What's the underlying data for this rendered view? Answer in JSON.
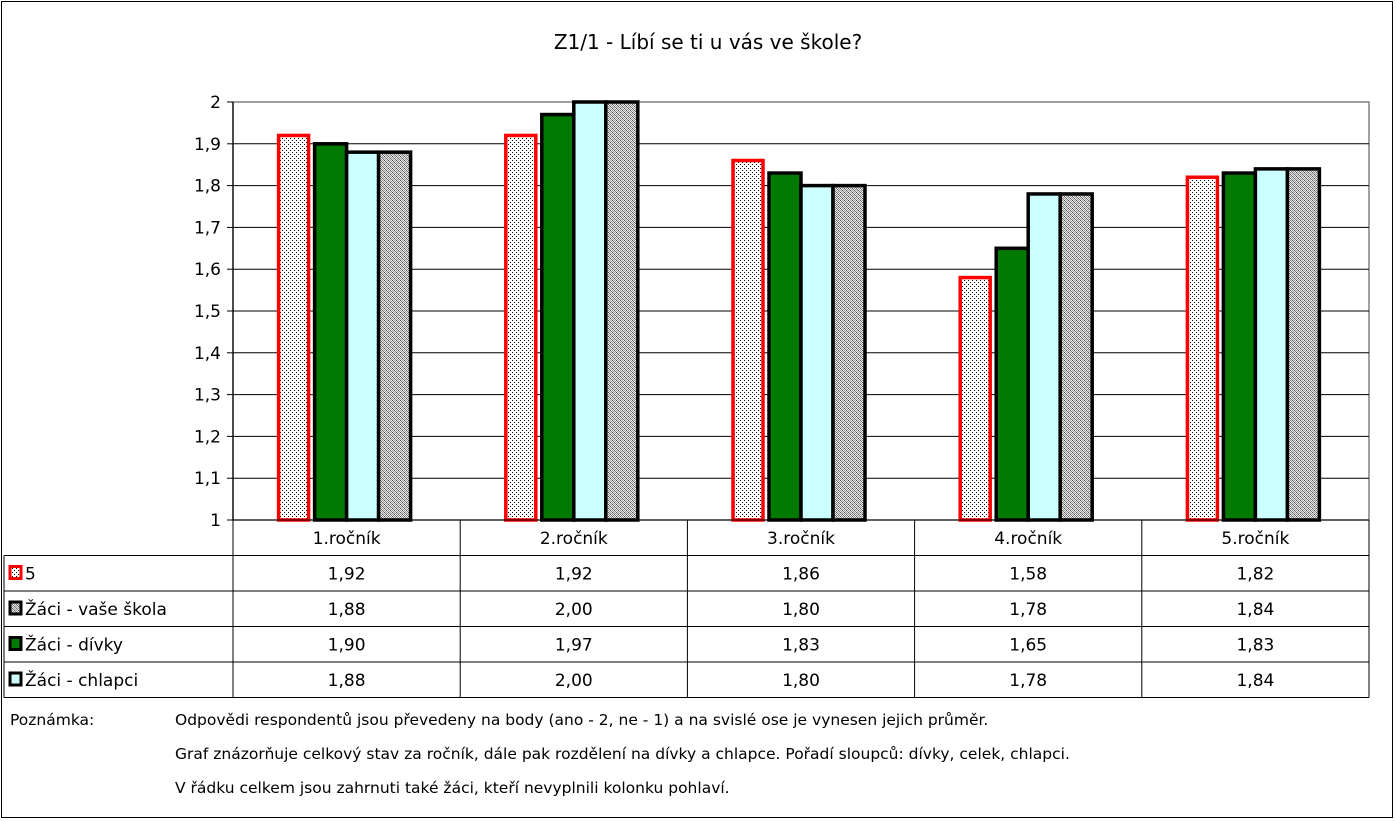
{
  "chart_data": {
    "type": "bar",
    "title": "Z1/1  - Líbí se ti u vás ve škole?",
    "categories": [
      "1.ročník",
      "2.ročník",
      "3.ročník",
      "4.ročník",
      "5.ročník"
    ],
    "ylim": [
      1,
      2
    ],
    "yticks": [
      "1",
      "1,1",
      "1,2",
      "1,3",
      "1,4",
      "1,5",
      "1,6",
      "1,7",
      "1,8",
      "1,9",
      "2"
    ],
    "grid": true,
    "bar_order": [
      0,
      2,
      3,
      1
    ],
    "series": [
      {
        "name": "5",
        "values": [
          1.92,
          1.92,
          1.86,
          1.58,
          1.82
        ],
        "display": [
          "1,92",
          "1,92",
          "1,86",
          "1,58",
          "1,82"
        ],
        "fill": "dots",
        "stroke": "#ff0000",
        "color": "#ffffff"
      },
      {
        "name": "Žáci - vaše škola",
        "values": [
          1.88,
          2.0,
          1.8,
          1.78,
          1.84
        ],
        "display": [
          "1,88",
          "2,00",
          "1,80",
          "1,78",
          "1,84"
        ],
        "fill": "crosshatch",
        "stroke": "#000000",
        "color": "#c0c0c0"
      },
      {
        "name": "Žáci - dívky",
        "values": [
          1.9,
          1.97,
          1.83,
          1.65,
          1.83
        ],
        "display": [
          "1,90",
          "1,97",
          "1,83",
          "1,65",
          "1,83"
        ],
        "fill": "solid",
        "stroke": "#000000",
        "color": "#007a00"
      },
      {
        "name": "Žáci - chlapci",
        "values": [
          1.88,
          2.0,
          1.8,
          1.78,
          1.84
        ],
        "display": [
          "1,88",
          "2,00",
          "1,80",
          "1,78",
          "1,84"
        ],
        "fill": "solid",
        "stroke": "#000000",
        "color": "#ccffff"
      }
    ]
  },
  "notes": {
    "label": "Poznámka:",
    "lines": [
      "Odpovědi respondentů jsou převedeny na body (ano - 2, ne - 1) a na svislé ose je vynesen jejich průměr.",
      "Graf znázorňuje celkový stav za ročník, dále pak rozdělení na dívky a chlapce. Pořadí sloupců: dívky, celek, chlapci.",
      "V řádku celkem jsou zahrnuti také žáci, kteří nevyplnili kolonku pohlaví."
    ]
  }
}
